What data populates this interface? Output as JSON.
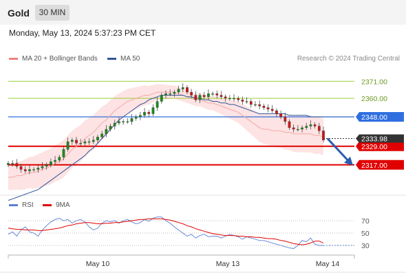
{
  "instrument": "Gold",
  "timeframe_button": "30 MIN",
  "datetime": "Monday, May 13, 2024 5:37:23 PM CET",
  "legend": [
    {
      "label": "MA 20 + Bollinger Bands",
      "color": "#f08080"
    },
    {
      "label": "MA 50",
      "color": "#2f5597"
    }
  ],
  "credit": "Research © 2024 Trading Central",
  "rsi_legend": [
    {
      "label": "RSI",
      "color": "#5b7fd4"
    },
    {
      "label": "9MA",
      "color": "#e00000"
    }
  ],
  "chart_data": {
    "type": "line",
    "title": "Gold",
    "x_tick_labels": [
      "May 10",
      "May 13",
      "May 14"
    ],
    "ylim": [
      2300,
      2380
    ],
    "horizontal_levels": [
      {
        "value": 2371.0,
        "label": "2371.00",
        "style": "resistance",
        "color": "#9acd32"
      },
      {
        "value": 2360.0,
        "label": "2360.00",
        "style": "resistance",
        "color": "#9acd32"
      },
      {
        "value": 2348.0,
        "label": "2348.00",
        "style": "pivot",
        "color": "#2f6fe0"
      },
      {
        "value": 2329.0,
        "label": "2329.00",
        "style": "support",
        "color": "#e00000"
      },
      {
        "value": 2317.0,
        "label": "2317.00",
        "style": "support",
        "color": "#e00000"
      }
    ],
    "last_price": {
      "value": 2333.98,
      "label": "2333.98"
    },
    "price_close": [
      2318,
      2318,
      2316,
      2314,
      2313,
      2314,
      2314,
      2315,
      2316,
      2317,
      2319,
      2320,
      2322,
      2327,
      2332,
      2333,
      2331,
      2331,
      2332,
      2332,
      2333,
      2335,
      2337,
      2340,
      2342,
      2344,
      2345,
      2345,
      2345,
      2347,
      2348,
      2349,
      2351,
      2350,
      2354,
      2358,
      2362,
      2363,
      2363,
      2364,
      2366,
      2367,
      2364,
      2362,
      2359,
      2362,
      2361,
      2363,
      2363,
      2362,
      2361,
      2360,
      2360,
      2360,
      2359,
      2358,
      2358,
      2356,
      2356,
      2355,
      2354,
      2353,
      2352,
      2350,
      2348,
      2345,
      2341,
      2340,
      2340,
      2341,
      2342,
      2343,
      2342,
      2339,
      2333
    ],
    "ma20": [
      2309,
      2309,
      2310,
      2310,
      2311,
      2312,
      2312,
      2313,
      2314,
      2315,
      2316,
      2318,
      2319,
      2321,
      2324,
      2327,
      2329,
      2331,
      2334,
      2336,
      2338,
      2341,
      2344,
      2346,
      2349,
      2352,
      2354,
      2356,
      2358,
      2359,
      2360,
      2361,
      2362,
      2362,
      2363,
      2364,
      2364,
      2364,
      2364,
      2364,
      2363,
      2362,
      2361,
      2360,
      2359,
      2359,
      2358,
      2357,
      2357,
      2356,
      2355,
      2354,
      2353,
      2352,
      2351,
      2349,
      2347,
      2345,
      2343,
      2341,
      2340,
      2340,
      2339,
      2339,
      2339,
      2338,
      2338,
      2337,
      2337,
      2337,
      2337,
      2337,
      2336,
      2336,
      2335
    ],
    "ma50": [
      2294,
      2295,
      2296,
      2297,
      2298,
      2299,
      2300,
      2301,
      2303,
      2305,
      2307,
      2309,
      2311,
      2313,
      2315,
      2317,
      2319,
      2321,
      2323,
      2326,
      2328,
      2331,
      2334,
      2337,
      2340,
      2343,
      2346,
      2348,
      2350,
      2352,
      2354,
      2356,
      2357,
      2359,
      2360,
      2361,
      2362,
      2362,
      2362,
      2362,
      2362,
      2362,
      2361,
      2361,
      2360,
      2360,
      2359,
      2359,
      2358,
      2358,
      2357,
      2357,
      2356,
      2356,
      2355,
      2354,
      2353,
      2352,
      2351,
      2350,
      2350,
      2350,
      2350,
      2350,
      2350,
      2350,
      2349,
      2349,
      2349,
      2349,
      2349,
      2348,
      2348,
      2348,
      2348
    ],
    "rsi_ylim": [
      20,
      80
    ],
    "rsi_levels": [
      70,
      50,
      30
    ],
    "rsi": [
      48,
      52,
      45,
      55,
      60,
      52,
      50,
      45,
      55,
      62,
      68,
      72,
      74,
      70,
      72,
      66,
      70,
      72,
      68,
      60,
      55,
      58,
      66,
      70,
      68,
      70,
      66,
      70,
      72,
      68,
      65,
      67,
      72,
      69,
      74,
      76,
      76,
      70,
      66,
      60,
      55,
      50,
      45,
      48,
      42,
      46,
      48,
      44,
      45,
      45,
      42,
      45,
      48,
      46,
      44,
      40,
      44,
      42,
      40,
      38,
      38,
      36,
      34,
      32,
      30,
      28,
      26,
      25,
      30,
      38,
      36,
      42,
      32,
      30,
      30
    ],
    "rsi_ma": [
      58,
      57,
      56,
      56,
      55,
      55,
      55,
      54,
      54,
      55,
      56,
      57,
      58,
      60,
      62,
      63,
      65,
      66,
      67,
      67,
      66,
      65,
      65,
      66,
      66,
      67,
      67,
      68,
      69,
      70,
      71,
      72,
      72,
      73,
      73,
      73,
      73,
      72,
      71,
      69,
      67,
      65,
      62,
      60,
      57,
      55,
      53,
      51,
      49,
      48,
      47,
      46,
      46,
      46,
      45,
      45,
      44,
      44,
      43,
      43,
      42,
      41,
      41,
      40,
      38,
      37,
      35,
      33,
      32,
      31,
      32,
      34,
      37,
      37,
      34
    ]
  }
}
